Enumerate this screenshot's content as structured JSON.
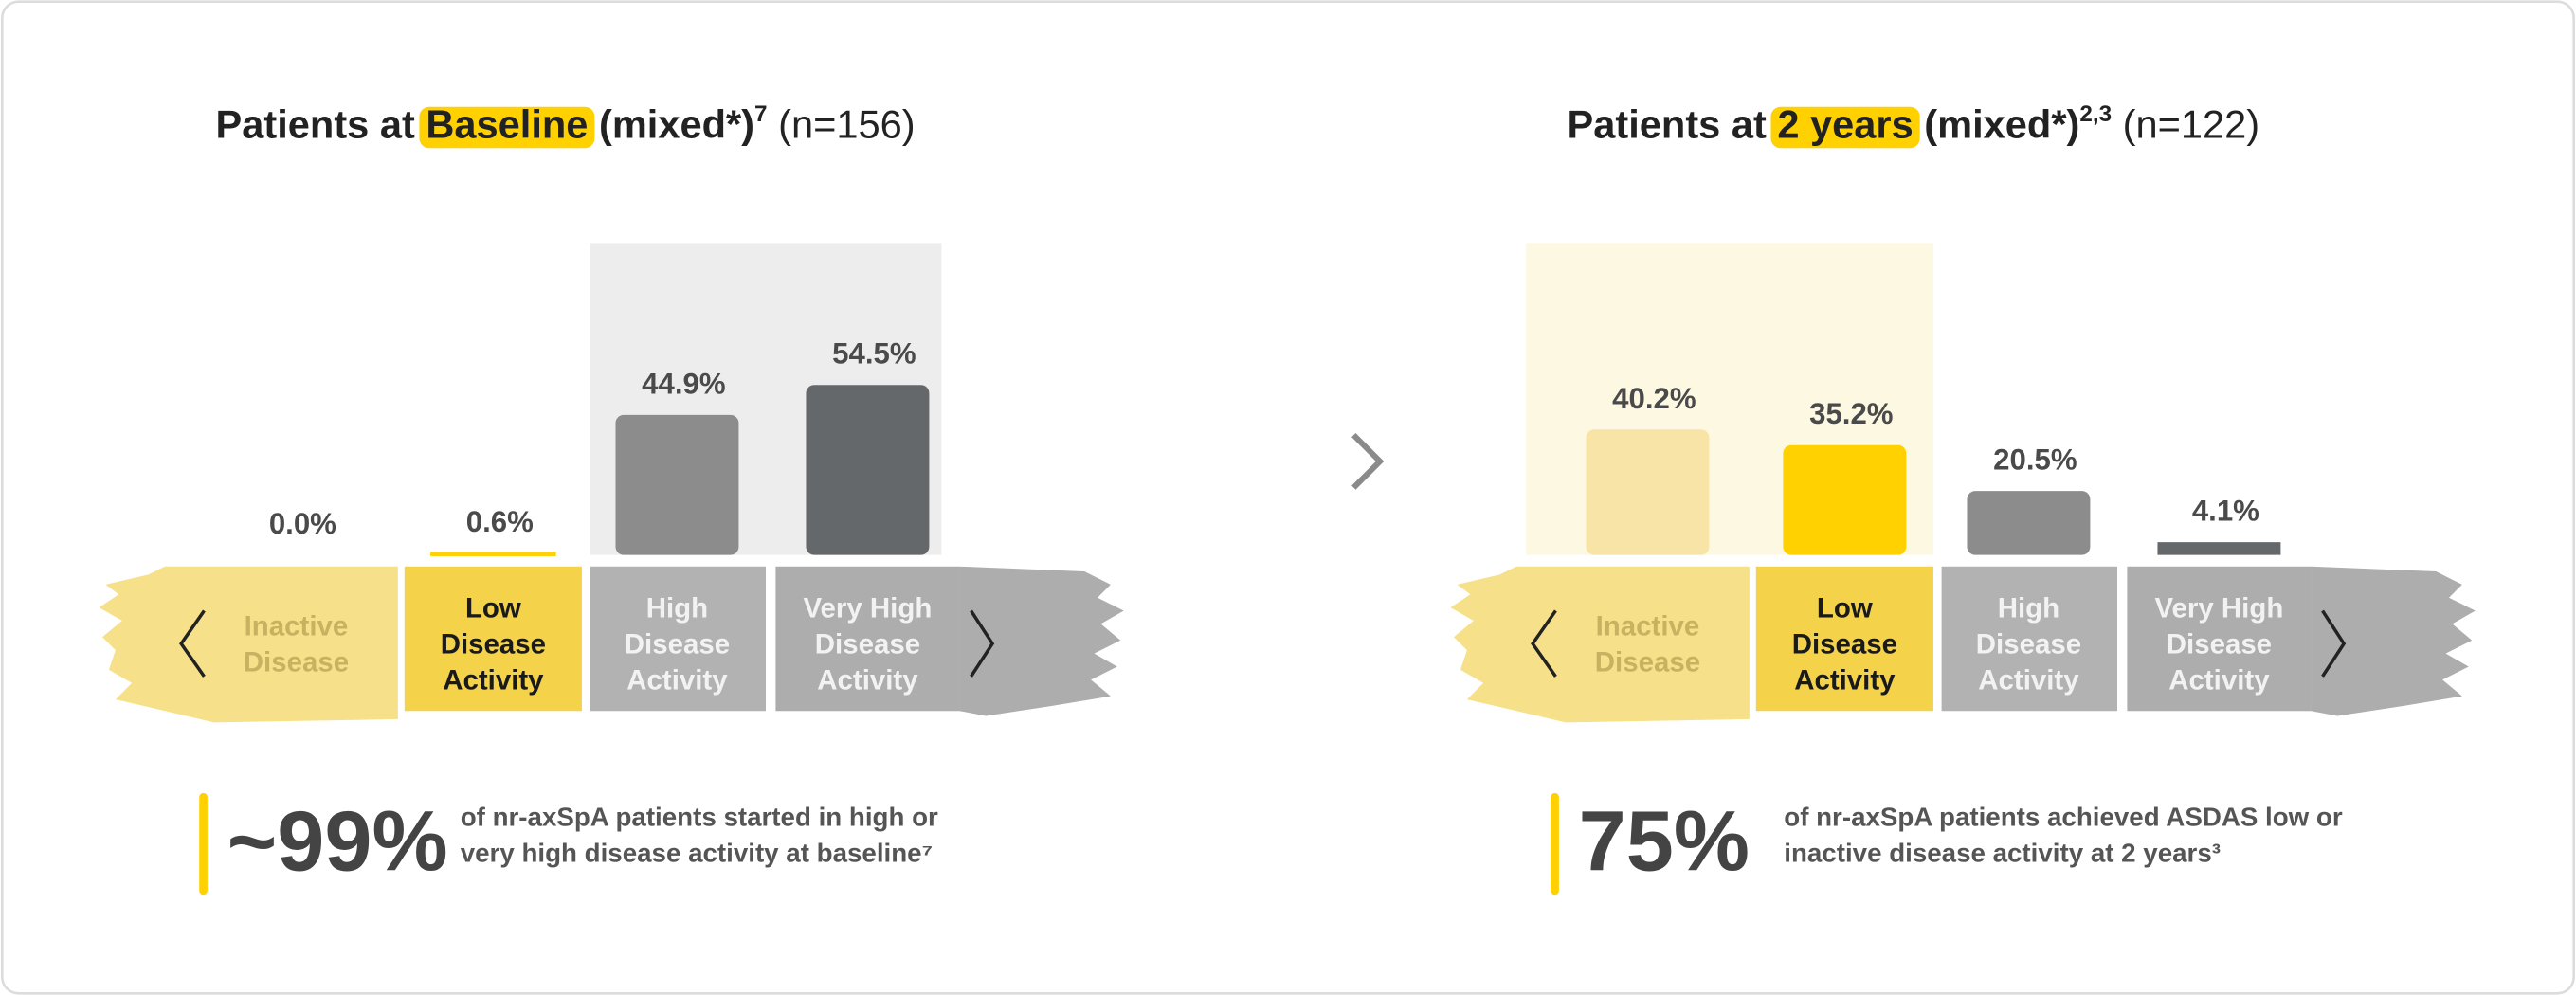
{
  "chart_data": [
    {
      "type": "bar",
      "title": {
        "prefix": "Patients at",
        "highlight": "Baseline",
        "suffix": "(mixed*)",
        "sup": "7",
        "n": "(n=156)"
      },
      "categories": [
        [
          "Inactive",
          "Disease"
        ],
        [
          "Low",
          "Disease",
          "Activity"
        ],
        [
          "High",
          "Disease",
          "Activity"
        ],
        [
          "Very High",
          "Disease",
          "Activity"
        ]
      ],
      "values": [
        0.0,
        0.6,
        44.9,
        54.5
      ],
      "value_labels": [
        "0.0%",
        "0.6%",
        "44.9%",
        "54.5%"
      ],
      "colors": [
        "#f4d34a",
        "#ffd100",
        "#8c8c8c",
        "#65686b"
      ],
      "ylim": [
        0,
        100
      ],
      "callout": {
        "figure": "~99%",
        "text": [
          "of nr-axSpA patients started in high or",
          "very high disease activity at baseline⁷"
        ]
      }
    },
    {
      "type": "bar",
      "title": {
        "prefix": "Patients at",
        "highlight": "2 years",
        "suffix": "(mixed*)",
        "sup": "2,3",
        "n": "(n=122)"
      },
      "categories": [
        [
          "Inactive",
          "Disease"
        ],
        [
          "Low",
          "Disease",
          "Activity"
        ],
        [
          "High",
          "Disease",
          "Activity"
        ],
        [
          "Very High",
          "Disease",
          "Activity"
        ]
      ],
      "values": [
        40.2,
        35.2,
        20.5,
        4.1
      ],
      "value_labels": [
        "40.2%",
        "35.2%",
        "20.5%",
        "4.1%"
      ],
      "colors": [
        "#f7e4a6",
        "#ffd100",
        "#8c8c8c",
        "#65686b"
      ],
      "ylim": [
        0,
        100
      ],
      "callout": {
        "figure": "75%",
        "text": [
          "of nr-axSpA patients achieved ASDAS low or",
          "inactive disease activity at 2 years³"
        ]
      }
    }
  ]
}
